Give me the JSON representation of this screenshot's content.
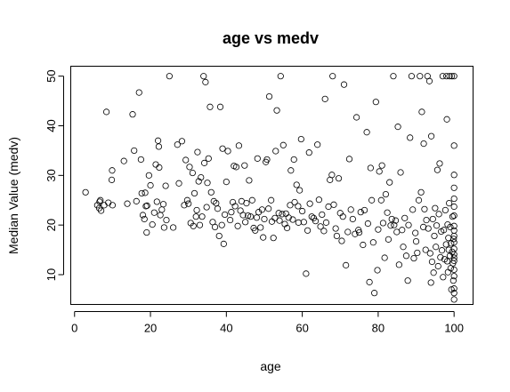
{
  "chart_data": {
    "type": "scatter",
    "title": "age vs medv",
    "xlabel": "age",
    "ylabel": "Median Value (medv)",
    "xlim": [
      -1,
      105
    ],
    "ylim": [
      4,
      52
    ],
    "xticks": [
      0,
      20,
      40,
      60,
      80,
      100
    ],
    "yticks": [
      10,
      20,
      30,
      40,
      50
    ],
    "grid": false,
    "marker": "open-circle",
    "color": "#000000",
    "series": [
      {
        "points": [
          [
            2.9,
            26.6
          ],
          [
            6.0,
            24.0
          ],
          [
            6.5,
            23.4
          ],
          [
            6.6,
            24.7
          ],
          [
            6.8,
            25.0
          ],
          [
            7.0,
            22.9
          ],
          [
            7.8,
            24.0
          ],
          [
            8.4,
            42.8
          ],
          [
            8.9,
            24.5
          ],
          [
            9.8,
            29.1
          ],
          [
            9.9,
            31.0
          ],
          [
            10.0,
            24.0
          ],
          [
            13.0,
            32.9
          ],
          [
            13.9,
            24.3
          ],
          [
            15.3,
            42.3
          ],
          [
            15.7,
            35.0
          ],
          [
            16.3,
            24.8
          ],
          [
            17.0,
            46.7
          ],
          [
            17.5,
            33.2
          ],
          [
            17.7,
            26.4
          ],
          [
            18.0,
            22.0
          ],
          [
            18.4,
            21.2
          ],
          [
            18.6,
            26.5
          ],
          [
            18.8,
            23.8
          ],
          [
            19.0,
            18.5
          ],
          [
            19.1,
            23.9
          ],
          [
            19.6,
            30.0
          ],
          [
            20.0,
            28.0
          ],
          [
            20.5,
            20.1
          ],
          [
            21.0,
            22.5
          ],
          [
            21.4,
            32.2
          ],
          [
            21.7,
            24.7
          ],
          [
            22.0,
            37.0
          ],
          [
            22.2,
            35.8
          ],
          [
            22.3,
            31.6
          ],
          [
            22.6,
            22.0
          ],
          [
            23.0,
            23.1
          ],
          [
            23.4,
            24.2
          ],
          [
            23.6,
            19.5
          ],
          [
            24.0,
            27.9
          ],
          [
            24.2,
            21.0
          ],
          [
            25.0,
            50.0
          ],
          [
            26.0,
            19.5
          ],
          [
            27.1,
            36.2
          ],
          [
            27.5,
            28.4
          ],
          [
            28.3,
            36.9
          ],
          [
            28.9,
            24.0
          ],
          [
            29.3,
            33.1
          ],
          [
            29.7,
            25.0
          ],
          [
            30.0,
            24.3
          ],
          [
            30.3,
            31.7
          ],
          [
            30.6,
            20.4
          ],
          [
            31.1,
            30.5
          ],
          [
            31.3,
            19.8
          ],
          [
            31.6,
            26.4
          ],
          [
            32.0,
            21.7
          ],
          [
            32.2,
            23.0
          ],
          [
            32.4,
            34.7
          ],
          [
            32.7,
            28.8
          ],
          [
            33.0,
            20.0
          ],
          [
            33.3,
            29.6
          ],
          [
            33.6,
            21.7
          ],
          [
            34.0,
            50.0
          ],
          [
            34.2,
            32.5
          ],
          [
            34.5,
            48.8
          ],
          [
            34.8,
            23.6
          ],
          [
            35.0,
            28.5
          ],
          [
            35.3,
            33.4
          ],
          [
            35.7,
            43.8
          ],
          [
            36.0,
            26.6
          ],
          [
            36.4,
            20.6
          ],
          [
            36.7,
            24.8
          ],
          [
            37.0,
            19.6
          ],
          [
            37.3,
            24.4
          ],
          [
            37.7,
            23.3
          ],
          [
            38.1,
            17.8
          ],
          [
            38.4,
            43.8
          ],
          [
            38.8,
            20.0
          ],
          [
            39.0,
            35.4
          ],
          [
            39.3,
            16.2
          ],
          [
            39.6,
            22.1
          ],
          [
            40.0,
            28.7
          ],
          [
            40.4,
            34.9
          ],
          [
            41.0,
            21.0
          ],
          [
            41.3,
            22.6
          ],
          [
            41.7,
            24.6
          ],
          [
            42.0,
            31.9
          ],
          [
            42.3,
            23.8
          ],
          [
            42.6,
            31.7
          ],
          [
            43.0,
            19.8
          ],
          [
            43.3,
            36.0
          ],
          [
            43.7,
            22.9
          ],
          [
            44.0,
            24.8
          ],
          [
            44.4,
            22.0
          ],
          [
            44.8,
            32.0
          ],
          [
            45.0,
            20.6
          ],
          [
            45.3,
            24.4
          ],
          [
            45.7,
            21.9
          ],
          [
            46.0,
            29.0
          ],
          [
            46.4,
            21.7
          ],
          [
            46.8,
            25.0
          ],
          [
            47.2,
            19.4
          ],
          [
            47.6,
            18.9
          ],
          [
            48.0,
            21.5
          ],
          [
            48.2,
            33.4
          ],
          [
            48.5,
            22.6
          ],
          [
            49.0,
            19.5
          ],
          [
            49.4,
            23.1
          ],
          [
            49.7,
            17.5
          ],
          [
            50.0,
            21.2
          ],
          [
            50.4,
            32.7
          ],
          [
            50.7,
            33.2
          ],
          [
            51.1,
            23.3
          ],
          [
            51.3,
            45.9
          ],
          [
            51.8,
            25.0
          ],
          [
            52.0,
            20.7
          ],
          [
            52.4,
            17.4
          ],
          [
            52.8,
            21.4
          ],
          [
            53.0,
            34.9
          ],
          [
            53.3,
            43.1
          ],
          [
            53.8,
            22.4
          ],
          [
            54.0,
            20.9
          ],
          [
            54.3,
            50.0
          ],
          [
            54.7,
            22.2
          ],
          [
            55.0,
            36.1
          ],
          [
            55.4,
            20.2
          ],
          [
            55.7,
            22.3
          ],
          [
            56.0,
            19.4
          ],
          [
            56.4,
            21.5
          ],
          [
            56.8,
            24.0
          ],
          [
            57.0,
            31.0
          ],
          [
            57.5,
            21.1
          ],
          [
            57.8,
            33.2
          ],
          [
            58.0,
            24.6
          ],
          [
            58.5,
            28.1
          ],
          [
            58.9,
            23.8
          ],
          [
            59.0,
            20.5
          ],
          [
            59.3,
            27.0
          ],
          [
            59.7,
            37.3
          ],
          [
            60.0,
            22.8
          ],
          [
            60.4,
            20.6
          ],
          [
            61.0,
            10.2
          ],
          [
            61.4,
            18.9
          ],
          [
            61.8,
            34.6
          ],
          [
            62.0,
            24.3
          ],
          [
            62.5,
            21.7
          ],
          [
            63.0,
            21.4
          ],
          [
            63.5,
            20.8
          ],
          [
            64.0,
            36.2
          ],
          [
            64.4,
            25.1
          ],
          [
            64.8,
            19.7
          ],
          [
            65.2,
            22.1
          ],
          [
            65.7,
            18.8
          ],
          [
            66.0,
            45.4
          ],
          [
            66.3,
            20.5
          ],
          [
            66.9,
            23.7
          ],
          [
            67.3,
            29.1
          ],
          [
            67.8,
            30.1
          ],
          [
            68.0,
            50.0
          ],
          [
            68.3,
            24.1
          ],
          [
            68.8,
            19.3
          ],
          [
            69.1,
            17.8
          ],
          [
            69.6,
            29.4
          ],
          [
            70.0,
            22.4
          ],
          [
            70.4,
            16.8
          ],
          [
            70.7,
            21.7
          ],
          [
            71.0,
            48.3
          ],
          [
            71.5,
            11.9
          ],
          [
            72.0,
            18.6
          ],
          [
            72.4,
            33.3
          ],
          [
            72.8,
            23.1
          ],
          [
            73.3,
            21.2
          ],
          [
            73.9,
            18.2
          ],
          [
            74.3,
            41.7
          ],
          [
            74.8,
            19.0
          ],
          [
            75.0,
            18.5
          ],
          [
            75.4,
            22.6
          ],
          [
            76.0,
            16.0
          ],
          [
            76.4,
            23.0
          ],
          [
            77.0,
            38.7
          ],
          [
            77.3,
            20.3
          ],
          [
            77.7,
            8.5
          ],
          [
            78.0,
            31.5
          ],
          [
            78.3,
            25.0
          ],
          [
            78.7,
            16.5
          ],
          [
            79.0,
            6.3
          ],
          [
            79.4,
            44.8
          ],
          [
            79.8,
            10.9
          ],
          [
            80.0,
            19.1
          ],
          [
            80.3,
            30.8
          ],
          [
            80.8,
            25.0
          ],
          [
            81.0,
            32.0
          ],
          [
            81.3,
            20.4
          ],
          [
            81.7,
            13.4
          ],
          [
            82.0,
            26.2
          ],
          [
            82.4,
            22.5
          ],
          [
            82.7,
            17.1
          ],
          [
            83.0,
            28.6
          ],
          [
            83.3,
            19.9
          ],
          [
            83.6,
            21.2
          ],
          [
            84.0,
            50.0
          ],
          [
            84.2,
            20.0
          ],
          [
            84.6,
            20.9
          ],
          [
            84.9,
            18.6
          ],
          [
            85.2,
            39.8
          ],
          [
            85.5,
            12.0
          ],
          [
            85.9,
            30.6
          ],
          [
            86.3,
            19.0
          ],
          [
            86.6,
            15.6
          ],
          [
            87.0,
            21.4
          ],
          [
            87.4,
            13.8
          ],
          [
            87.8,
            8.8
          ],
          [
            88.0,
            20.0
          ],
          [
            88.4,
            37.6
          ],
          [
            88.8,
            50.0
          ],
          [
            89.1,
            23.1
          ],
          [
            89.4,
            13.3
          ],
          [
            89.8,
            18.4
          ],
          [
            90.0,
            16.7
          ],
          [
            90.3,
            14.4
          ],
          [
            90.7,
            25.0
          ],
          [
            91.0,
            50.0
          ],
          [
            91.3,
            26.6
          ],
          [
            91.5,
            42.8
          ],
          [
            91.9,
            19.6
          ],
          [
            92.0,
            36.4
          ],
          [
            92.2,
            23.2
          ],
          [
            92.5,
            15.0
          ],
          [
            92.7,
            21.0
          ],
          [
            93.0,
            50.0
          ],
          [
            93.2,
            19.3
          ],
          [
            93.5,
            49.0
          ],
          [
            93.7,
            14.3
          ],
          [
            93.9,
            8.4
          ],
          [
            94.0,
            37.9
          ],
          [
            94.2,
            12.6
          ],
          [
            94.4,
            21.2
          ],
          [
            94.6,
            10.4
          ],
          [
            94.8,
            17.8
          ],
          [
            95.0,
            23.4
          ],
          [
            95.2,
            15.6
          ],
          [
            95.4,
            19.9
          ],
          [
            95.6,
            31.1
          ],
          [
            95.8,
            11.7
          ],
          [
            96.0,
            22.2
          ],
          [
            96.2,
            32.4
          ],
          [
            96.4,
            13.5
          ],
          [
            96.6,
            18.7
          ],
          [
            96.8,
            14.9
          ],
          [
            97.0,
            50.0
          ],
          [
            97.1,
            9.5
          ],
          [
            97.3,
            19.0
          ],
          [
            97.5,
            13.1
          ],
          [
            97.7,
            23.0
          ],
          [
            97.9,
            16.1
          ],
          [
            98.0,
            50.0
          ],
          [
            98.1,
            41.3
          ],
          [
            98.2,
            12.7
          ],
          [
            98.3,
            20.1
          ],
          [
            98.4,
            10.5
          ],
          [
            98.5,
            17.4
          ],
          [
            98.6,
            15.0
          ],
          [
            98.7,
            24.4
          ],
          [
            98.8,
            50.0
          ],
          [
            98.9,
            13.8
          ],
          [
            99.0,
            19.6
          ],
          [
            99.1,
            11.3
          ],
          [
            99.2,
            16.3
          ],
          [
            99.3,
            7.0
          ],
          [
            99.4,
            50.0
          ],
          [
            99.5,
            14.6
          ],
          [
            99.6,
            21.7
          ],
          [
            99.7,
            12.3
          ],
          [
            99.8,
            8.8
          ],
          [
            99.9,
            17.2
          ],
          [
            100.0,
            50.0
          ],
          [
            100.0,
            13.4
          ],
          [
            100.0,
            15.2
          ],
          [
            100.0,
            18.9
          ],
          [
            100.0,
            5.0
          ],
          [
            100.0,
            23.7
          ],
          [
            100.0,
            11.0
          ],
          [
            100.0,
            36.0
          ],
          [
            100.0,
            27.5
          ],
          [
            100.0,
            14.1
          ],
          [
            100.0,
            19.8
          ],
          [
            100.0,
            9.7
          ],
          [
            100.0,
            16.5
          ],
          [
            100.0,
            30.1
          ],
          [
            100.0,
            21.9
          ],
          [
            100.0,
            7.2
          ],
          [
            100.0,
            12.8
          ],
          [
            100.0,
            25.3
          ],
          [
            100.0,
            17.8
          ],
          [
            100.0,
            6.3
          ]
        ]
      }
    ]
  }
}
